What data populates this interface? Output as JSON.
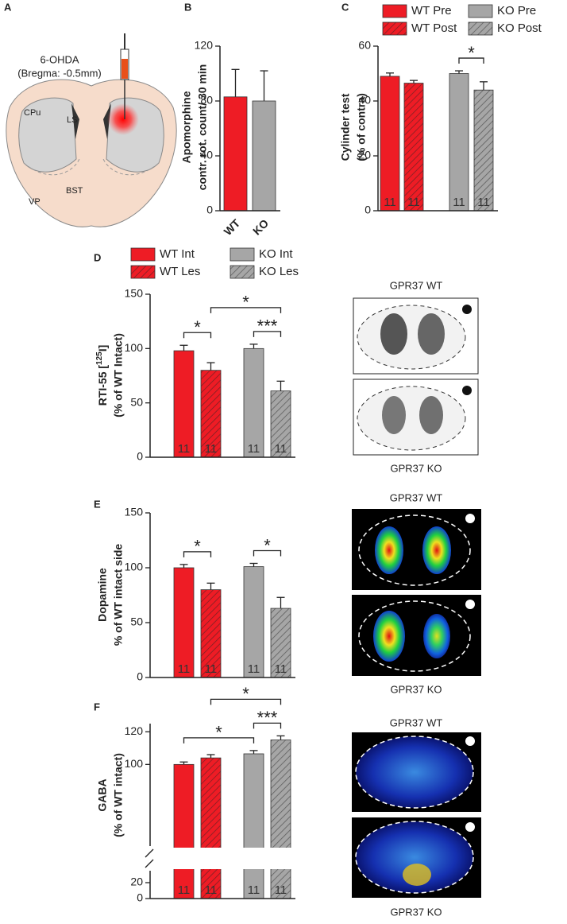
{
  "panels": [
    "A",
    "B",
    "C",
    "D",
    "E",
    "F"
  ],
  "schematic": {
    "injection": "6-OHDA",
    "coordinates": "(Bregma: -0.5mm)",
    "regions": [
      "CPu",
      "LS",
      "BST",
      "VP"
    ]
  },
  "images": {
    "D": [
      "GPR37 WT",
      "GPR37 KO"
    ],
    "E": [
      "GPR37 WT",
      "GPR37 KO"
    ],
    "F": [
      "GPR37 WT",
      "GPR37 KO"
    ]
  },
  "chart_data": [
    {
      "type": "bar",
      "y_label": [
        "Apomorphine",
        "contr. rot. count/ 30 min"
      ],
      "categories": [
        "WT",
        "KO"
      ],
      "values": [
        83,
        80
      ],
      "errors": [
        20,
        22
      ],
      "colors": [
        "#ee1c25",
        "#a6a6a6"
      ],
      "ylim": [
        0,
        120
      ],
      "yticks": [
        0,
        40,
        80,
        120
      ]
    },
    {
      "type": "grouped_bar",
      "y_label": [
        "Cylinder test",
        "(% of contra)"
      ],
      "legend": true,
      "series": [
        {
          "name": "WT Pre",
          "color": "#ee1c25",
          "hatched": false,
          "values": [
            49
          ],
          "errors": [
            1.2
          ],
          "n": [
            11
          ]
        },
        {
          "name": "WT Post",
          "color": "#ee1c25",
          "hatched": true,
          "values": [
            46.5
          ],
          "errors": [
            1
          ],
          "n": [
            11
          ]
        },
        {
          "name": "KO Pre",
          "color": "#a6a6a6",
          "hatched": false,
          "values": [
            50
          ],
          "errors": [
            1
          ],
          "n": [
            11
          ]
        },
        {
          "name": "KO Post",
          "color": "#a6a6a6",
          "hatched": true,
          "values": [
            44
          ],
          "errors": [
            3
          ],
          "n": [
            11
          ]
        }
      ],
      "significance": [
        {
          "bars": [
            2,
            3
          ],
          "label": "*"
        }
      ],
      "ylim": [
        0,
        60
      ],
      "yticks": [
        0,
        20,
        40,
        60
      ]
    },
    {
      "type": "grouped_bar",
      "y_label": [
        {
          "text": "RTI-55 [",
          "sup": "125",
          "after": "I]"
        },
        "(% of WT Intact)"
      ],
      "legend": true,
      "series": [
        {
          "name": "WT Int",
          "color": "#ee1c25",
          "hatched": false,
          "values": [
            98
          ],
          "errors": [
            5
          ],
          "n": [
            11
          ]
        },
        {
          "name": "WT Les",
          "color": "#ee1c25",
          "hatched": true,
          "values": [
            80
          ],
          "errors": [
            7
          ],
          "n": [
            11
          ]
        },
        {
          "name": "KO Int",
          "color": "#a6a6a6",
          "hatched": false,
          "values": [
            100
          ],
          "errors": [
            4
          ],
          "n": [
            11
          ]
        },
        {
          "name": "KO Les",
          "color": "#a6a6a6",
          "hatched": true,
          "values": [
            61
          ],
          "errors": [
            9
          ],
          "n": [
            11
          ]
        }
      ],
      "significance": [
        {
          "bars": [
            0,
            1
          ],
          "label": "*"
        },
        {
          "bars": [
            2,
            3
          ],
          "label": "***"
        },
        {
          "bars": [
            1,
            3
          ],
          "label": "*"
        }
      ],
      "ylim": [
        0,
        150
      ],
      "yticks": [
        0,
        50,
        100,
        150
      ]
    },
    {
      "type": "grouped_bar",
      "y_label": [
        "Dopamine",
        "% of WT intact side"
      ],
      "legend": false,
      "series": [
        {
          "color": "#ee1c25",
          "hatched": false,
          "values": [
            100
          ],
          "errors": [
            3
          ],
          "n": [
            11
          ]
        },
        {
          "color": "#ee1c25",
          "hatched": true,
          "values": [
            80
          ],
          "errors": [
            6
          ],
          "n": [
            11
          ]
        },
        {
          "color": "#a6a6a6",
          "hatched": false,
          "values": [
            101
          ],
          "errors": [
            3
          ],
          "n": [
            11
          ]
        },
        {
          "color": "#a6a6a6",
          "hatched": true,
          "values": [
            63
          ],
          "errors": [
            10
          ],
          "n": [
            11
          ]
        }
      ],
      "significance": [
        {
          "bars": [
            0,
            1
          ],
          "label": "*"
        },
        {
          "bars": [
            2,
            3
          ],
          "label": "*"
        }
      ],
      "ylim": [
        0,
        150
      ],
      "yticks": [
        0,
        50,
        100,
        150
      ]
    },
    {
      "type": "grouped_bar",
      "y_label": [
        "GABA",
        "(% of WT intact)"
      ],
      "legend": false,
      "broken_axis": true,
      "series": [
        {
          "color": "#ee1c25",
          "hatched": false,
          "values": [
            100
          ],
          "errors": [
            1.5
          ],
          "n": [
            11
          ]
        },
        {
          "color": "#ee1c25",
          "hatched": true,
          "values": [
            104
          ],
          "errors": [
            2
          ],
          "n": [
            11
          ]
        },
        {
          "color": "#a6a6a6",
          "hatched": false,
          "values": [
            106.5
          ],
          "errors": [
            2
          ],
          "n": [
            11
          ]
        },
        {
          "color": "#a6a6a6",
          "hatched": true,
          "values": [
            115
          ],
          "errors": [
            2.5
          ],
          "n": [
            11
          ]
        }
      ],
      "significance": [
        {
          "bars": [
            0,
            2
          ],
          "label": "*"
        },
        {
          "bars": [
            2,
            3
          ],
          "label": "***"
        },
        {
          "bars": [
            1,
            3
          ],
          "label": "*"
        }
      ],
      "ylim": [
        50,
        125
      ],
      "yticks": [
        100,
        120
      ],
      "ylim_lower": [
        0,
        35
      ],
      "yticks_lower": [
        0,
        20
      ]
    }
  ]
}
